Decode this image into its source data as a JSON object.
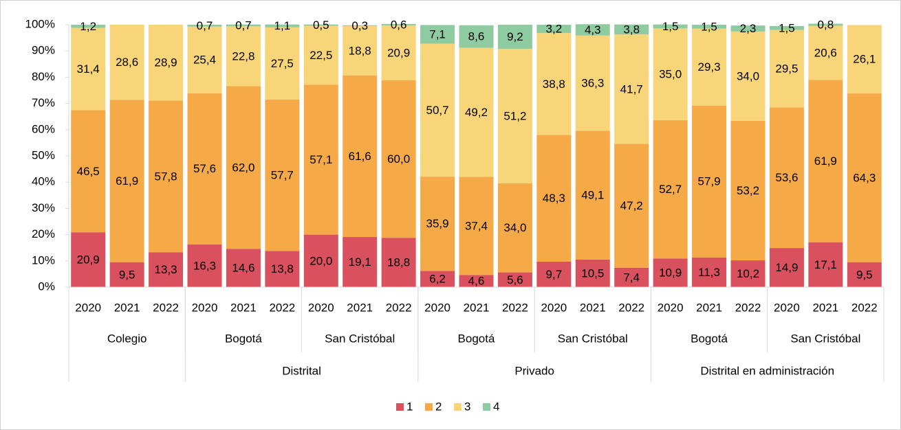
{
  "chart_data": {
    "type": "stacked_bar",
    "categories": [
      "2020",
      "2021",
      "2022",
      "2020",
      "2021",
      "2022",
      "2020",
      "2021",
      "2022",
      "2020",
      "2021",
      "2022",
      "2020",
      "2021",
      "2022",
      "2020",
      "2021",
      "2022",
      "2020",
      "2021",
      "2022"
    ],
    "subgroups": [
      "Colegio",
      null,
      null,
      "Bogotá",
      null,
      null,
      "San Cristóbal",
      null,
      null,
      "Bogotá",
      null,
      null,
      "San Cristóbal",
      null,
      null,
      "Bogotá",
      null,
      null,
      "San Cristóbal",
      null,
      null
    ],
    "groups": [
      null,
      null,
      null,
      "Distrital",
      null,
      null,
      null,
      null,
      null,
      "Privado",
      null,
      null,
      null,
      null,
      null,
      "Distrital en administración",
      null,
      null,
      null,
      null,
      null
    ],
    "series": [
      {
        "name": "1",
        "color": "#d9515f",
        "values": [
          20.9,
          9.5,
          13.3,
          16.3,
          14.6,
          13.8,
          20.0,
          19.1,
          18.8,
          6.2,
          4.6,
          5.6,
          9.7,
          10.5,
          7.4,
          10.9,
          11.3,
          10.2,
          14.9,
          17.1,
          9.5
        ],
        "value_labels": [
          "20,9",
          "9,5",
          "13,3",
          "16,3",
          "14,6",
          "13,8",
          "20,0",
          "19,1",
          "18,8",
          "6,2",
          "4,6",
          "5,6",
          "9,7",
          "10,5",
          "7,4",
          "10,9",
          "11,3",
          "10,2",
          "14,9",
          "17,1",
          "9,5"
        ]
      },
      {
        "name": "2",
        "color": "#f5a947",
        "values": [
          46.5,
          61.9,
          57.8,
          57.6,
          62.0,
          57.7,
          57.1,
          61.6,
          60.0,
          35.9,
          37.4,
          34.0,
          48.3,
          49.1,
          47.2,
          52.7,
          57.9,
          53.2,
          53.6,
          61.9,
          64.3
        ],
        "value_labels": [
          "46,5",
          "61,9",
          "57,8",
          "57,6",
          "62,0",
          "57,7",
          "57,1",
          "61,6",
          "60,0",
          "35,9",
          "37,4",
          "34,0",
          "48,3",
          "49,1",
          "47,2",
          "52,7",
          "57,9",
          "53,2",
          "53,6",
          "61,9",
          "64,3"
        ]
      },
      {
        "name": "3",
        "color": "#f9d57a",
        "values": [
          31.4,
          28.6,
          28.9,
          25.4,
          22.8,
          27.5,
          22.5,
          18.8,
          20.9,
          50.7,
          49.2,
          51.2,
          38.8,
          36.3,
          41.7,
          35.0,
          29.3,
          34.0,
          29.5,
          20.6,
          26.1
        ],
        "value_labels": [
          "31,4",
          "28,6",
          "28,9",
          "25,4",
          "22,8",
          "27,5",
          "22,5",
          "18,8",
          "20,9",
          "50,7",
          "49,2",
          "51,2",
          "38,8",
          "36,3",
          "41,7",
          "35,0",
          "29,3",
          "34,0",
          "29,5",
          "20,6",
          "26,1"
        ]
      },
      {
        "name": "4",
        "color": "#8ecba1",
        "values": [
          1.2,
          null,
          null,
          0.7,
          0.7,
          1.1,
          0.5,
          0.3,
          0.6,
          7.1,
          8.6,
          9.2,
          3.2,
          4.3,
          3.8,
          1.5,
          1.5,
          2.3,
          1.5,
          0.8,
          null
        ],
        "value_labels": [
          "1,2",
          null,
          null,
          "0,7",
          "0,7",
          "1,1",
          "0,5",
          "0,3",
          "0,6",
          "7,1",
          "8,6",
          "9,2",
          "3,2",
          "4,3",
          "3,8",
          "1,5",
          "1,5",
          "2,3",
          "1,5",
          "0,8",
          null
        ]
      }
    ],
    "ylim": [
      0,
      100
    ],
    "yticks": [
      {
        "value": 0,
        "label": "0%"
      },
      {
        "value": 10,
        "label": "10%"
      },
      {
        "value": 20,
        "label": "20%"
      },
      {
        "value": 30,
        "label": "30%"
      },
      {
        "value": 40,
        "label": "40%"
      },
      {
        "value": 50,
        "label": "50%"
      },
      {
        "value": 60,
        "label": "60%"
      },
      {
        "value": 70,
        "label": "70%"
      },
      {
        "value": 80,
        "label": "80%"
      },
      {
        "value": 90,
        "label": "90%"
      },
      {
        "value": 100,
        "label": "100%"
      }
    ],
    "legend": "bottom"
  }
}
